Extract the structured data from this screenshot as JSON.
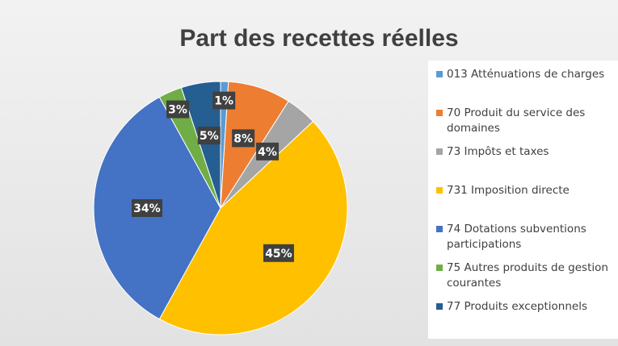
{
  "chart_data": {
    "type": "pie",
    "title": "Part des recettes réelles",
    "categories": [
      "013 Atténuations de charges",
      "70 Produit du service des domaines",
      "73 Impôts et taxes",
      "731 Imposition directe",
      "74 Dotations subventions participations",
      "75 Autres produits de gestion courantes",
      "77 Produits exceptionnels"
    ],
    "values": [
      1,
      8,
      4,
      45,
      34,
      3,
      5
    ],
    "value_labels": [
      "1%",
      "8%",
      "4%",
      "45%",
      "34%",
      "3%",
      "5%"
    ],
    "colors": [
      "#5b9bd5",
      "#ed7d31",
      "#a5a5a5",
      "#ffc000",
      "#4472c4",
      "#70ad47",
      "#255e91"
    ],
    "legend": "right"
  }
}
